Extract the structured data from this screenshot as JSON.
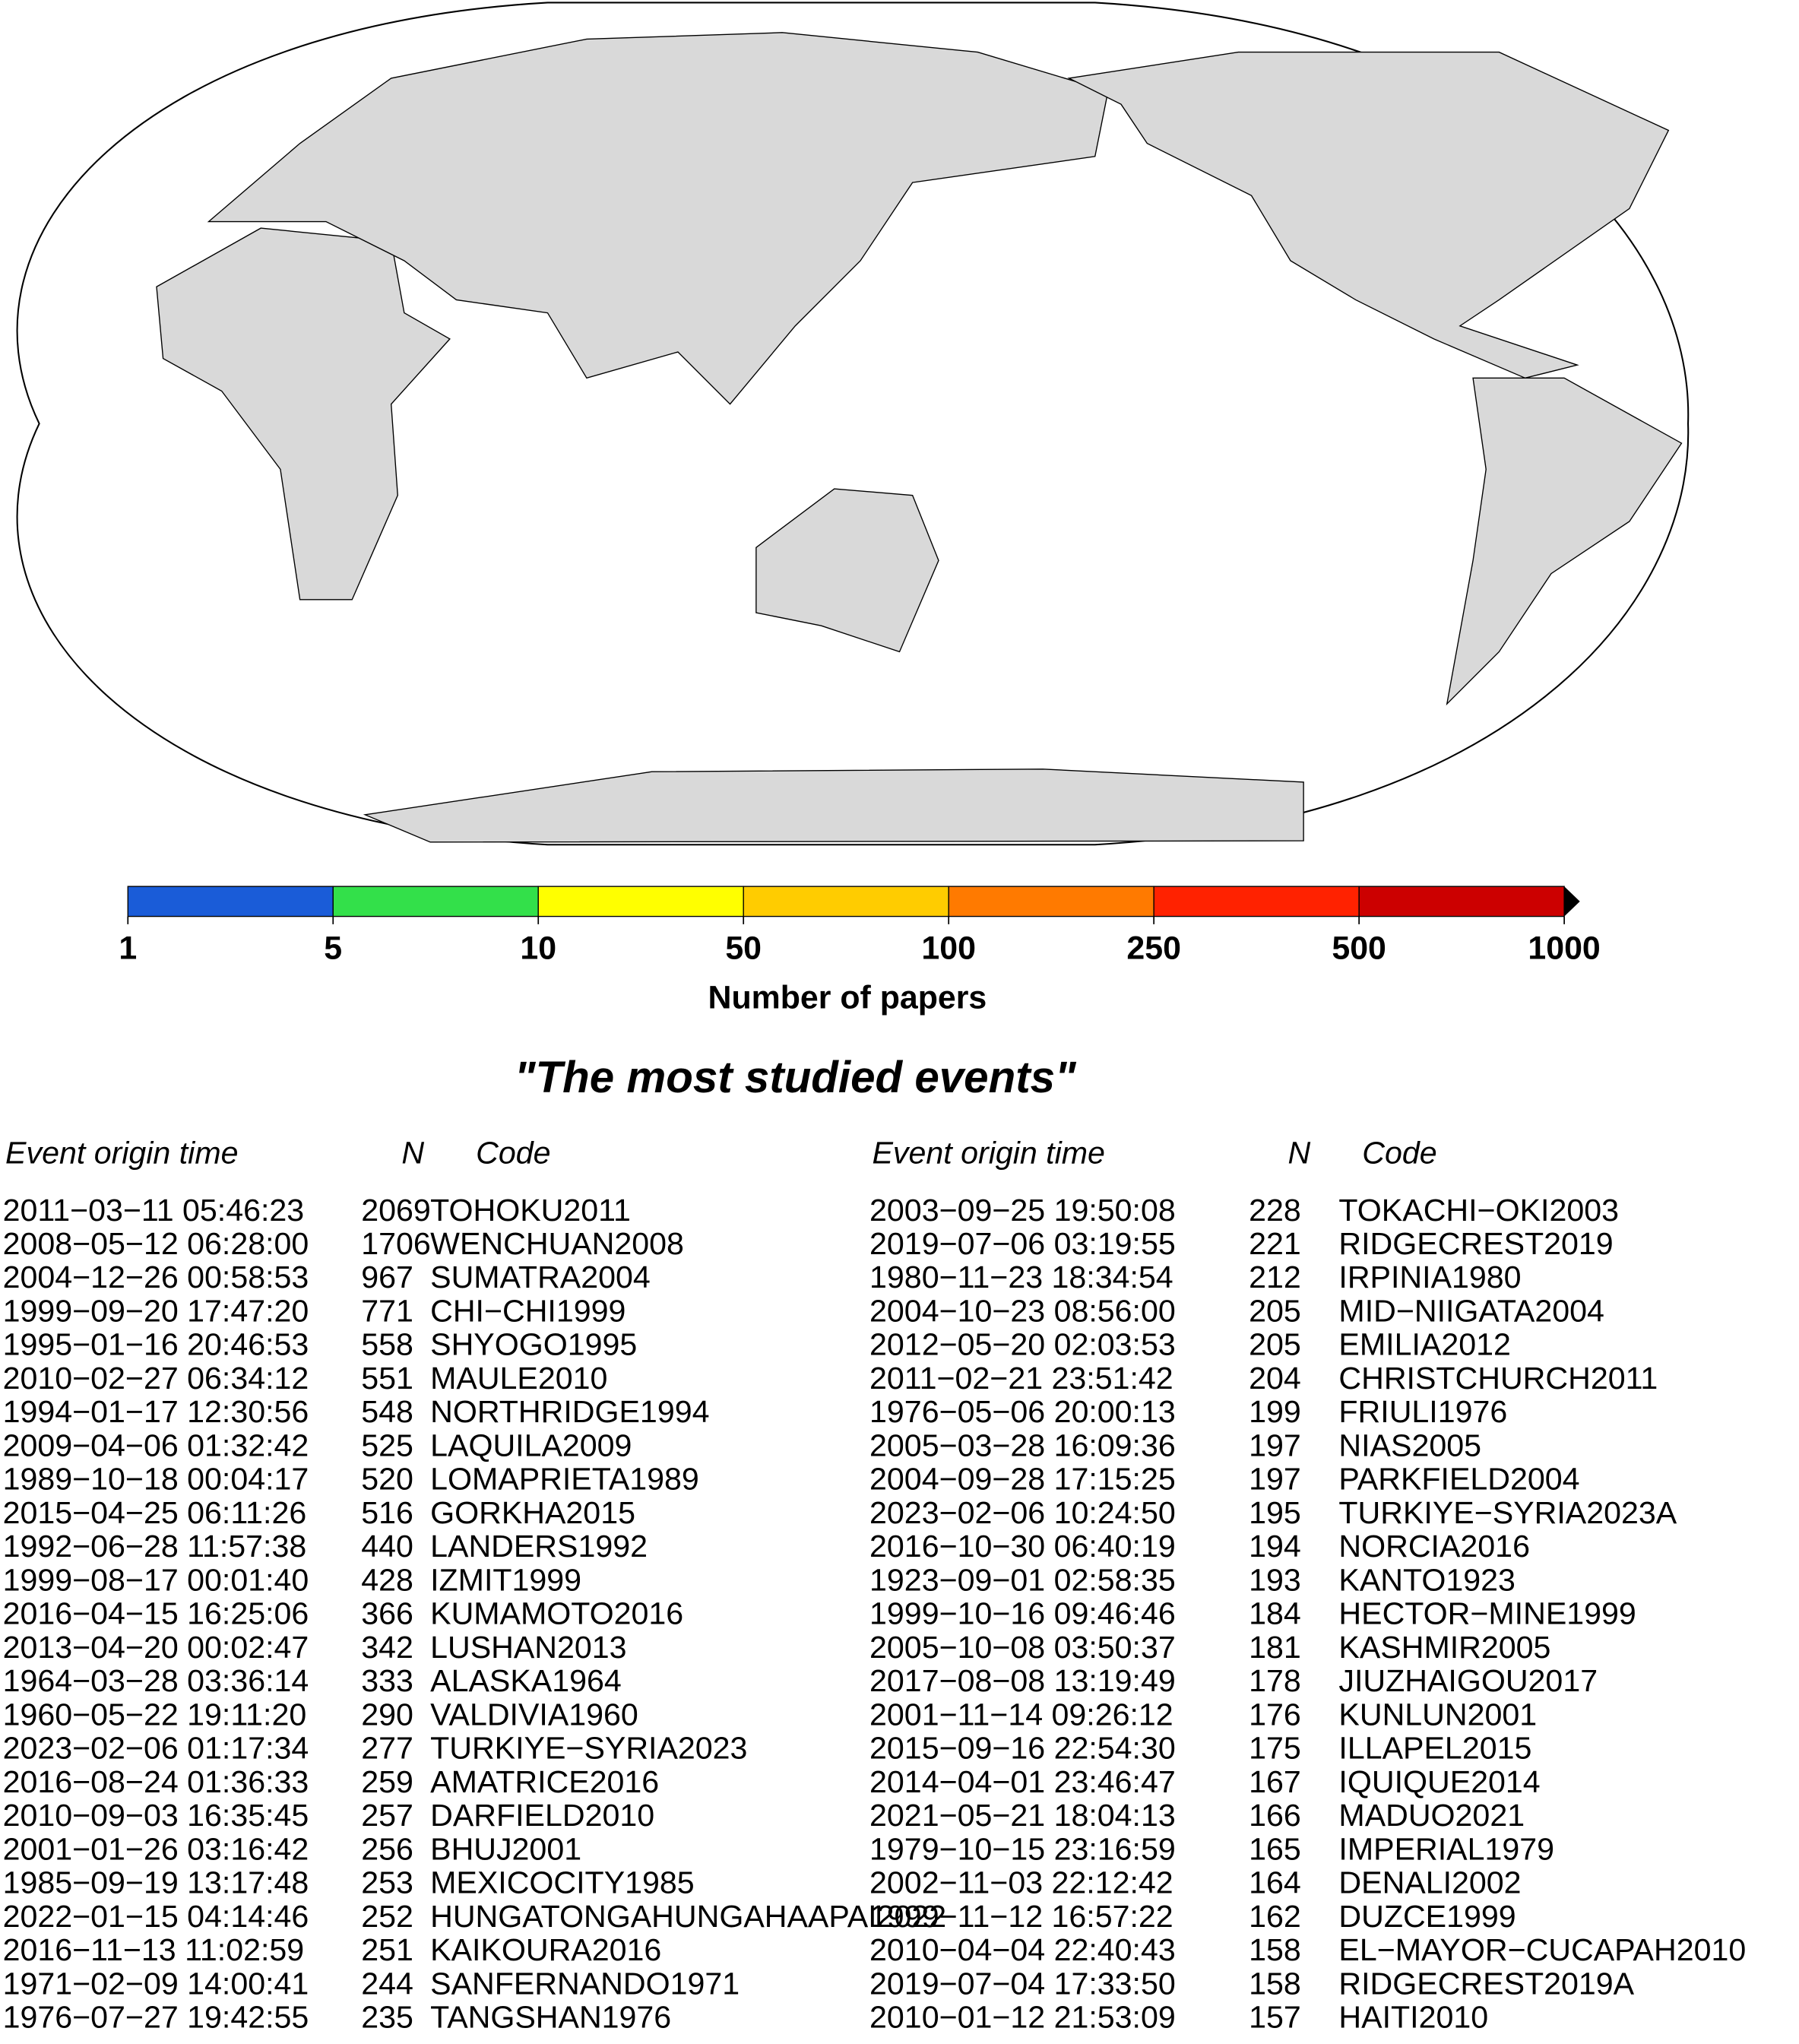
{
  "colorbar": {
    "label": "Number of papers",
    "ticks": [
      1,
      5,
      10,
      50,
      100,
      250,
      500,
      1000
    ],
    "colors": [
      "#1a5cd8",
      "#33e04a",
      "#ffff00",
      "#ffcc00",
      "#ff7a00",
      "#ff2200",
      "#cc0000"
    ]
  },
  "title": "\"The most studied events\"",
  "tables": [
    {
      "headers": [
        "Event origin time",
        "N",
        "Code"
      ],
      "rows": [
        [
          "2011−03−11 05:46:23",
          2069,
          "TOHOKU2011"
        ],
        [
          "2008−05−12 06:28:00",
          1706,
          "WENCHUAN2008"
        ],
        [
          "2004−12−26 00:58:53",
          967,
          "SUMATRA2004"
        ],
        [
          "1999−09−20 17:47:20",
          771,
          "CHI−CHI1999"
        ],
        [
          "1995−01−16 20:46:53",
          558,
          "SHYOGO1995"
        ],
        [
          "2010−02−27 06:34:12",
          551,
          "MAULE2010"
        ],
        [
          "1994−01−17 12:30:56",
          548,
          "NORTHRIDGE1994"
        ],
        [
          "2009−04−06 01:32:42",
          525,
          "LAQUILA2009"
        ],
        [
          "1989−10−18 00:04:17",
          520,
          "LOMAPRIETA1989"
        ],
        [
          "2015−04−25 06:11:26",
          516,
          "GORKHA2015"
        ],
        [
          "1992−06−28 11:57:38",
          440,
          "LANDERS1992"
        ],
        [
          "1999−08−17 00:01:40",
          428,
          "IZMIT1999"
        ],
        [
          "2016−04−15 16:25:06",
          366,
          "KUMAMOTO2016"
        ],
        [
          "2013−04−20 00:02:47",
          342,
          "LUSHAN2013"
        ],
        [
          "1964−03−28 03:36:14",
          333,
          "ALASKA1964"
        ],
        [
          "1960−05−22 19:11:20",
          290,
          "VALDIVIA1960"
        ],
        [
          "2023−02−06 01:17:34",
          277,
          "TURKIYE−SYRIA2023"
        ],
        [
          "2016−08−24 01:36:33",
          259,
          "AMATRICE2016"
        ],
        [
          "2010−09−03 16:35:45",
          257,
          "DARFIELD2010"
        ],
        [
          "2001−01−26 03:16:42",
          256,
          "BHUJ2001"
        ],
        [
          "1985−09−19 13:17:48",
          253,
          "MEXICOCITY1985"
        ],
        [
          "2022−01−15 04:14:46",
          252,
          "HUNGATONGAHUNGAHAAPAI2022"
        ],
        [
          "2016−11−13 11:02:59",
          251,
          "KAIKOURA2016"
        ],
        [
          "1971−02−09 14:00:41",
          244,
          "SANFERNANDO1971"
        ],
        [
          "1976−07−27 19:42:55",
          235,
          "TANGSHAN1976"
        ]
      ]
    },
    {
      "headers": [
        "Event origin time",
        "N",
        "Code"
      ],
      "rows": [
        [
          "2003−09−25 19:50:08",
          228,
          "TOKACHI−OKI2003"
        ],
        [
          "2019−07−06 03:19:55",
          221,
          "RIDGECREST2019"
        ],
        [
          "1980−11−23 18:34:54",
          212,
          "IRPINIA1980"
        ],
        [
          "2004−10−23 08:56:00",
          205,
          "MID−NIIGATA2004"
        ],
        [
          "2012−05−20 02:03:53",
          205,
          "EMILIA2012"
        ],
        [
          "2011−02−21 23:51:42",
          204,
          "CHRISTCHURCH2011"
        ],
        [
          "1976−05−06 20:00:13",
          199,
          "FRIULI1976"
        ],
        [
          "2005−03−28 16:09:36",
          197,
          "NIAS2005"
        ],
        [
          "2004−09−28 17:15:25",
          197,
          "PARKFIELD2004"
        ],
        [
          "2023−02−06 10:24:50",
          195,
          "TURKIYE−SYRIA2023A"
        ],
        [
          "2016−10−30 06:40:19",
          194,
          "NORCIA2016"
        ],
        [
          "1923−09−01 02:58:35",
          193,
          "KANTO1923"
        ],
        [
          "1999−10−16 09:46:46",
          184,
          "HECTOR−MINE1999"
        ],
        [
          "2005−10−08 03:50:37",
          181,
          "KASHMIR2005"
        ],
        [
          "2017−08−08 13:19:49",
          178,
          "JIUZHAIGOU2017"
        ],
        [
          "2001−11−14 09:26:12",
          176,
          "KUNLUN2001"
        ],
        [
          "2015−09−16 22:54:30",
          175,
          "ILLAPEL2015"
        ],
        [
          "2014−04−01 23:46:47",
          167,
          "IQUIQUE2014"
        ],
        [
          "2021−05−21 18:04:13",
          166,
          "MADUO2021"
        ],
        [
          "1979−10−15 23:16:59",
          165,
          "IMPERIAL1979"
        ],
        [
          "2002−11−03 22:12:42",
          164,
          "DENALI2002"
        ],
        [
          "1999−11−12 16:57:22",
          162,
          "DUZCE1999"
        ],
        [
          "2010−04−04 22:40:43",
          158,
          "EL−MAYOR−CUCAPAH2010"
        ],
        [
          "2019−07−04 17:33:50",
          158,
          "RIDGECREST2019A"
        ],
        [
          "2010−01−12 21:53:09",
          157,
          "HAITI2010"
        ]
      ]
    }
  ]
}
